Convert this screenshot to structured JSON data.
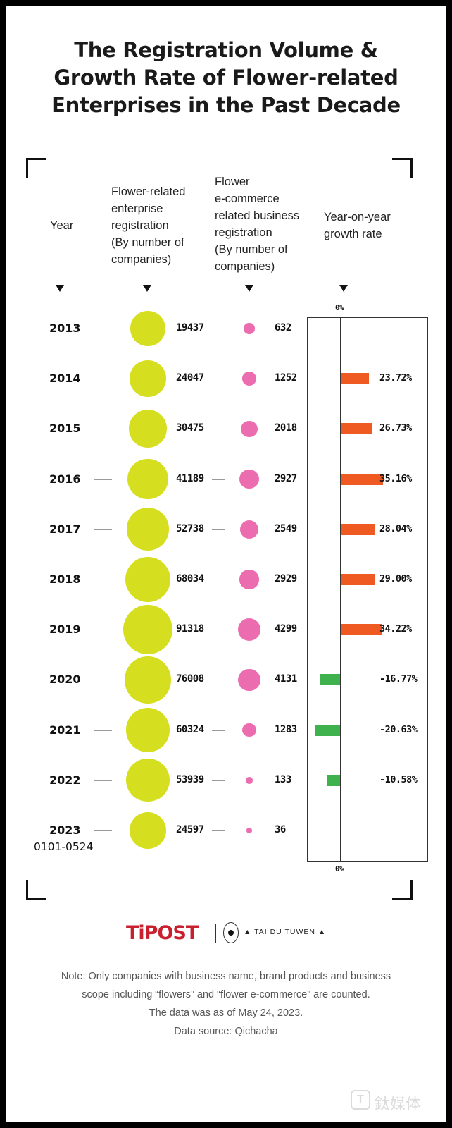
{
  "title": {
    "line1": "The Registration Volume &",
    "line2": "Growth Rate of Flower-related",
    "line3": "Enterprises in the Past Decade"
  },
  "headers": {
    "year": "Year",
    "enterprise": [
      "Flower-related",
      "enterprise",
      "registration",
      "(By number of",
      "companies)"
    ],
    "ecommerce": [
      "Flower",
      "e-commerce",
      "related business",
      "registration",
      "(By number of",
      "companies)"
    ],
    "growth": [
      "Year-on-year",
      "growth rate"
    ]
  },
  "zero_label": "0%",
  "colors": {
    "enterprise": "#d6df1f",
    "ecommerce": "#ec6cb0",
    "positive": "#ef5a22",
    "negative": "#3fb14d"
  },
  "chart_data": {
    "type": "bubble_table",
    "title": "The Registration Volume & Growth Rate of Flower-related Enterprises in the Past Decade",
    "years": [
      "2013",
      "2014",
      "2015",
      "2016",
      "2017",
      "2018",
      "2019",
      "2020",
      "2021",
      "2022",
      "2023"
    ],
    "year_sublabels": [
      "",
      "",
      "",
      "",
      "",
      "",
      "",
      "",
      "",
      "",
      "0101-0524"
    ],
    "series": [
      {
        "name": "Flower-related enterprise registration (By number of companies)",
        "values": [
          19437,
          24047,
          30475,
          41189,
          52738,
          68034,
          91318,
          76008,
          60324,
          53939,
          24597
        ]
      },
      {
        "name": "Flower e-commerce related business registration (By number of companies)",
        "values": [
          632,
          1252,
          2018,
          2927,
          2549,
          2929,
          4299,
          4131,
          1283,
          133,
          36
        ]
      },
      {
        "name": "Year-on-year growth rate",
        "unit": "%",
        "values": [
          null,
          23.72,
          26.73,
          35.16,
          28.04,
          29.0,
          34.22,
          -16.77,
          -20.63,
          -10.58,
          null
        ]
      }
    ]
  },
  "growth_labels": [
    "",
    "23.72%",
    "26.73%",
    "35.16%",
    "28.04%",
    "29.00%",
    "34.22%",
    "-16.77%",
    "-20.63%",
    "-10.58%",
    ""
  ],
  "brand": {
    "tipost": "TiPOST",
    "taidu": "TAI DU TUWEN"
  },
  "notes": [
    "Note: Only companies with business name, brand products and business",
    "scope including “flowers” and “flower e-commerce” are counted.",
    "The data was as of May 24, 2023.",
    "Data source: Qichacha"
  ],
  "watermark": "鈦媒体"
}
